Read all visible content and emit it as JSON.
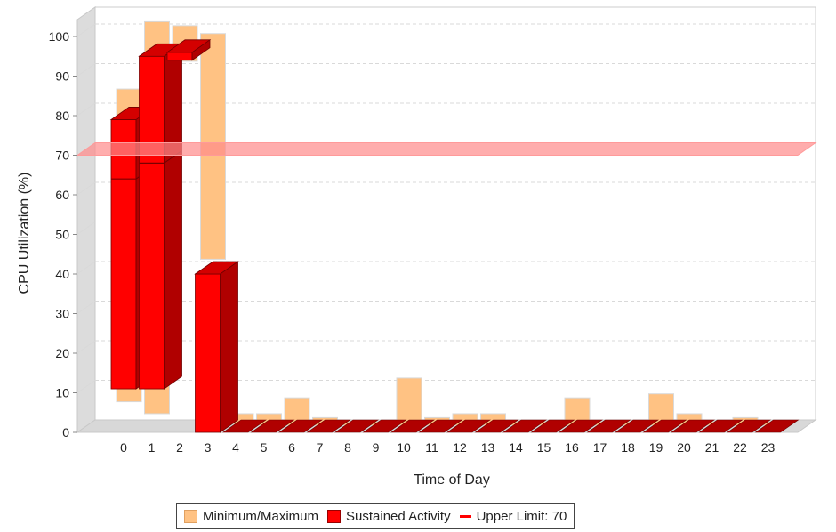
{
  "chart_data": {
    "type": "bar",
    "xlabel": "Time of Day",
    "ylabel": "CPU Utilization (%)",
    "ylim": [
      0,
      100
    ],
    "yticks": [
      0,
      10,
      20,
      30,
      40,
      50,
      60,
      70,
      80,
      90,
      100
    ],
    "categories": [
      "0",
      "1",
      "2",
      "3",
      "4",
      "5",
      "6",
      "7",
      "8",
      "9",
      "10",
      "11",
      "12",
      "13",
      "14",
      "15",
      "16",
      "17",
      "18",
      "19",
      "20",
      "21",
      "22",
      "23"
    ],
    "grid": true,
    "legend_position": "bottom",
    "series": [
      {
        "name": "Minimum/Maximum",
        "color": "#FFC283",
        "min": [
          6,
          3,
          92,
          42,
          0.3,
          0,
          0,
          0,
          0,
          0,
          0,
          0,
          0,
          0,
          0,
          0,
          0,
          0,
          0,
          0,
          0,
          0,
          0,
          0
        ],
        "max": [
          85,
          102,
          101,
          99,
          3,
          3,
          7,
          2,
          1,
          1,
          12,
          2,
          3,
          3,
          1,
          1,
          7,
          1,
          1,
          8,
          3,
          1,
          2,
          1
        ]
      },
      {
        "name": "Sustained Activity",
        "color": "#FF0000",
        "side_color": "#B00000",
        "low": [
          11,
          11,
          94,
          0,
          0,
          0,
          0,
          0,
          0,
          0,
          0,
          0,
          0,
          0,
          0,
          0,
          0,
          0,
          0,
          0,
          0,
          0,
          0,
          0
        ],
        "high": [
          79,
          95,
          96,
          40,
          0,
          0,
          0,
          0,
          0,
          0,
          0,
          0,
          0,
          0,
          0,
          0,
          0,
          0,
          0,
          0,
          0,
          0,
          0,
          0
        ],
        "mid": [
          64,
          68,
          null,
          null,
          null,
          null,
          null,
          null,
          null,
          null,
          null,
          null,
          null,
          null,
          null,
          null,
          null,
          null,
          null,
          null,
          null,
          null,
          null,
          null
        ]
      }
    ],
    "threshold": {
      "name": "Upper Limit: 70",
      "value": 70,
      "color": "#FF8A8A"
    },
    "legend": [
      {
        "label": "Minimum/Maximum",
        "kind": "box",
        "color": "#FFC283"
      },
      {
        "label": "Sustained Activity",
        "kind": "box",
        "color": "#FF0000"
      },
      {
        "label": "Upper Limit: 70",
        "kind": "line",
        "color": "#FF0000"
      }
    ]
  }
}
